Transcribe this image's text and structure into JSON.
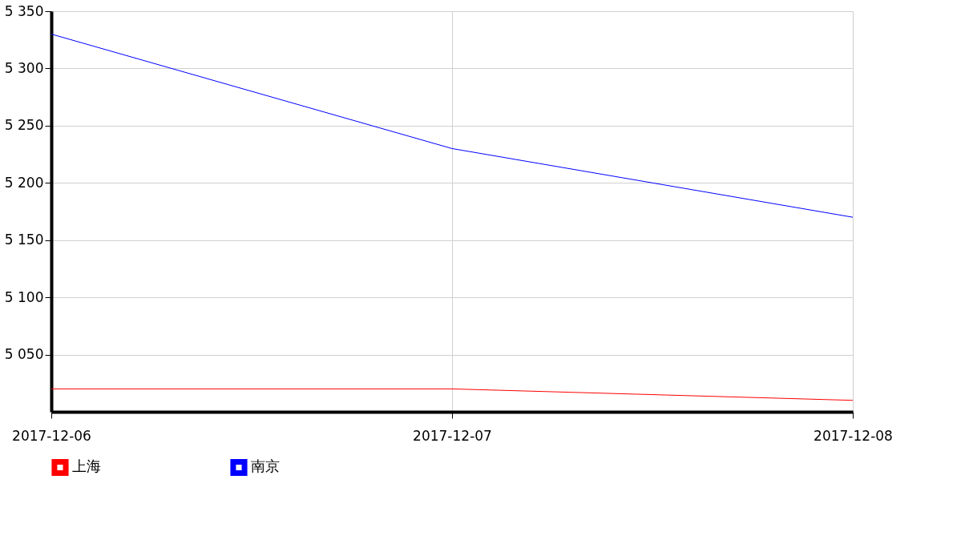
{
  "chart_data": {
    "type": "line",
    "categories": [
      "2017-12-06",
      "2017-12-07",
      "2017-12-08"
    ],
    "series": [
      {
        "name": "上海",
        "color": "#ff0000",
        "values": [
          5020,
          5020,
          5010
        ]
      },
      {
        "name": "南京",
        "color": "#0000ff",
        "values": [
          5330,
          5230,
          5170
        ]
      }
    ],
    "ylim": [
      5000,
      5350
    ],
    "yticks": [
      {
        "value": 5050,
        "label": "5 050"
      },
      {
        "value": 5100,
        "label": "5 100"
      },
      {
        "value": 5150,
        "label": "5 150"
      },
      {
        "value": 5200,
        "label": "5 200"
      },
      {
        "value": 5250,
        "label": "5 250"
      },
      {
        "value": 5300,
        "label": "5 300"
      },
      {
        "value": 5350,
        "label": "5 350"
      }
    ],
    "grid": true,
    "legend": "bottom left",
    "marker": "none",
    "line_style": "solid"
  }
}
